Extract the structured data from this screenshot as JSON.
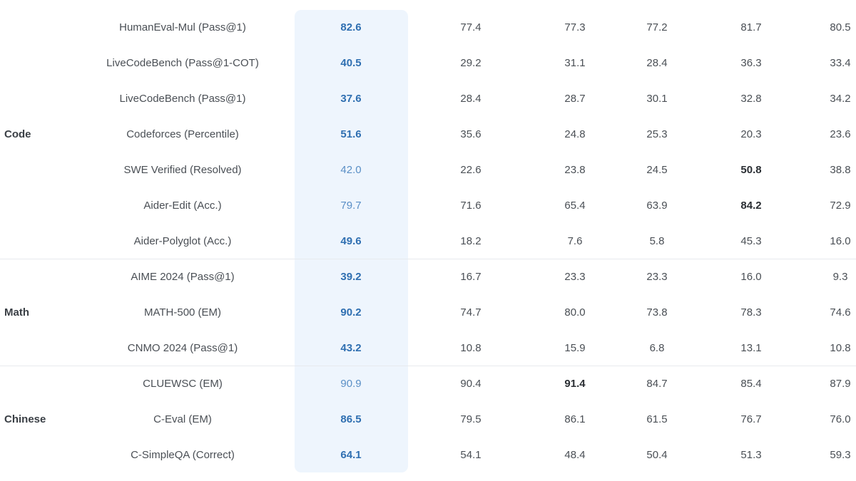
{
  "groups": [
    {
      "label": "Code",
      "rows": [
        {
          "benchmark": "HumanEval-Mul (Pass@1)",
          "ours": "82.6",
          "ours_bold": true,
          "values": [
            "77.4",
            "77.3",
            "77.2",
            "81.7",
            "80.5"
          ],
          "bold_index": -1
        },
        {
          "benchmark": "LiveCodeBench (Pass@1-COT)",
          "ours": "40.5",
          "ours_bold": true,
          "values": [
            "29.2",
            "31.1",
            "28.4",
            "36.3",
            "33.4"
          ],
          "bold_index": -1
        },
        {
          "benchmark": "LiveCodeBench (Pass@1)",
          "ours": "37.6",
          "ours_bold": true,
          "values": [
            "28.4",
            "28.7",
            "30.1",
            "32.8",
            "34.2"
          ],
          "bold_index": -1
        },
        {
          "benchmark": "Codeforces (Percentile)",
          "ours": "51.6",
          "ours_bold": true,
          "values": [
            "35.6",
            "24.8",
            "25.3",
            "20.3",
            "23.6"
          ],
          "bold_index": -1
        },
        {
          "benchmark": "SWE Verified (Resolved)",
          "ours": "42.0",
          "ours_bold": false,
          "values": [
            "22.6",
            "23.8",
            "24.5",
            "50.8",
            "38.8"
          ],
          "bold_index": 3
        },
        {
          "benchmark": "Aider-Edit (Acc.)",
          "ours": "79.7",
          "ours_bold": false,
          "values": [
            "71.6",
            "65.4",
            "63.9",
            "84.2",
            "72.9"
          ],
          "bold_index": 3
        },
        {
          "benchmark": "Aider-Polyglot (Acc.)",
          "ours": "49.6",
          "ours_bold": true,
          "values": [
            "18.2",
            "7.6",
            "5.8",
            "45.3",
            "16.0"
          ],
          "bold_index": -1
        }
      ]
    },
    {
      "label": "Math",
      "rows": [
        {
          "benchmark": "AIME 2024 (Pass@1)",
          "ours": "39.2",
          "ours_bold": true,
          "values": [
            "16.7",
            "23.3",
            "23.3",
            "16.0",
            "9.3"
          ],
          "bold_index": -1
        },
        {
          "benchmark": "MATH-500 (EM)",
          "ours": "90.2",
          "ours_bold": true,
          "values": [
            "74.7",
            "80.0",
            "73.8",
            "78.3",
            "74.6"
          ],
          "bold_index": -1
        },
        {
          "benchmark": "CNMO 2024 (Pass@1)",
          "ours": "43.2",
          "ours_bold": true,
          "values": [
            "10.8",
            "15.9",
            "6.8",
            "13.1",
            "10.8"
          ],
          "bold_index": -1
        }
      ]
    },
    {
      "label": "Chinese",
      "rows": [
        {
          "benchmark": "CLUEWSC (EM)",
          "ours": "90.9",
          "ours_bold": false,
          "values": [
            "90.4",
            "91.4",
            "84.7",
            "85.4",
            "87.9"
          ],
          "bold_index": 1
        },
        {
          "benchmark": "C-Eval (EM)",
          "ours": "86.5",
          "ours_bold": true,
          "values": [
            "79.5",
            "86.1",
            "61.5",
            "76.7",
            "76.0"
          ],
          "bold_index": -1
        },
        {
          "benchmark": "C-SimpleQA (Correct)",
          "ours": "64.1",
          "ours_bold": true,
          "values": [
            "54.1",
            "48.4",
            "50.4",
            "51.3",
            "59.3"
          ],
          "bold_index": -1
        }
      ]
    }
  ]
}
